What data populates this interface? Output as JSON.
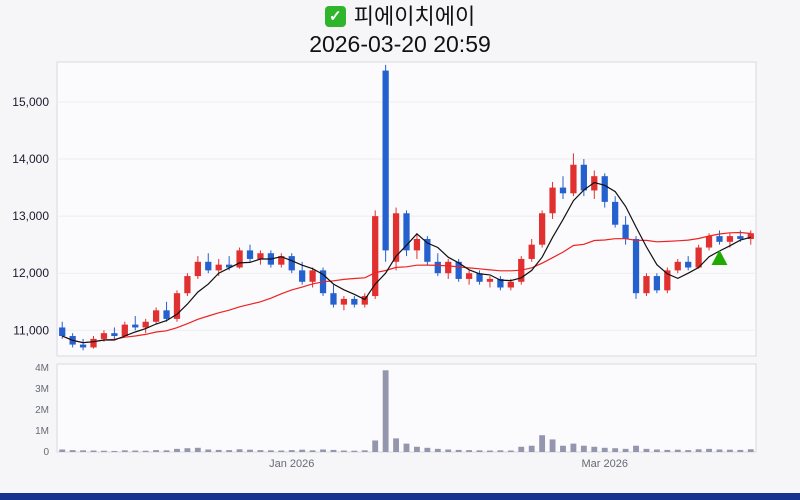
{
  "header": {
    "title": "피에이치에이",
    "datetime": "2026-03-20 20:59",
    "check_glyph": "✓"
  },
  "colors": {
    "up": "#e03030",
    "down": "#2560cf",
    "ma_fast": "#111111",
    "ma_slow": "#ee2222",
    "volume_bar": "#9396ad",
    "grid": "#ededf0",
    "panel_bg": "#fbfbfd",
    "panel_border": "#d9d9df",
    "axis_text": "#1a1a2e",
    "axis_text_muted": "#666a75",
    "marker": "#1faa00",
    "check_bg": "#2eb52c",
    "bottom_bar": "#16338f"
  },
  "chart_data": {
    "type": "candlestick",
    "title": "피에이치에이",
    "subtitle": "2026-03-20 20:59",
    "legend_position": "none",
    "grid": true,
    "y_axis": {
      "labels": [
        "15,000",
        "14,000",
        "13,000",
        "12,000",
        "11,000"
      ],
      "min": 10550,
      "max": 15700
    },
    "volume_axis": {
      "labels": [
        "4M",
        "3M",
        "2M",
        "1M",
        "0"
      ],
      "max": 4200000
    },
    "x_ticks": [
      {
        "index": 22,
        "label": "Jan 2026"
      },
      {
        "index": 52,
        "label": "Mar 2026"
      }
    ],
    "marker": {
      "index": 63,
      "price": 12250,
      "shape": "triangle-up",
      "color": "#1faa00"
    },
    "series_note": "candles are [open, high, low, close, volume]; red=up, blue=down; black line = MA5, red line = MA20",
    "candles": [
      [
        11050,
        11150,
        10850,
        10900,
        120000
      ],
      [
        10900,
        10950,
        10700,
        10750,
        90000
      ],
      [
        10750,
        10850,
        10650,
        10700,
        80000
      ],
      [
        10700,
        10900,
        10680,
        10850,
        70000
      ],
      [
        10850,
        11000,
        10800,
        10950,
        60000
      ],
      [
        10950,
        11050,
        10850,
        10900,
        50000
      ],
      [
        10900,
        11150,
        10880,
        11100,
        80000
      ],
      [
        11100,
        11250,
        11000,
        11050,
        70000
      ],
      [
        11050,
        11200,
        10950,
        11150,
        60000
      ],
      [
        11150,
        11400,
        11100,
        11350,
        90000
      ],
      [
        11350,
        11500,
        11150,
        11200,
        80000
      ],
      [
        11200,
        11700,
        11150,
        11650,
        150000
      ],
      [
        11650,
        12000,
        11600,
        11950,
        180000
      ],
      [
        11950,
        12300,
        11900,
        12200,
        200000
      ],
      [
        12200,
        12350,
        12000,
        12050,
        120000
      ],
      [
        12050,
        12250,
        11950,
        12150,
        100000
      ],
      [
        12150,
        12300,
        12050,
        12100,
        90000
      ],
      [
        12100,
        12450,
        12080,
        12400,
        130000
      ],
      [
        12400,
        12500,
        12200,
        12250,
        110000
      ],
      [
        12250,
        12400,
        12150,
        12350,
        90000
      ],
      [
        12350,
        12400,
        12100,
        12150,
        80000
      ],
      [
        12150,
        12350,
        12100,
        12300,
        70000
      ],
      [
        12300,
        12350,
        12000,
        12050,
        90000
      ],
      [
        12050,
        12200,
        11800,
        11850,
        110000
      ],
      [
        11850,
        12100,
        11750,
        12050,
        80000
      ],
      [
        12050,
        12100,
        11600,
        11650,
        120000
      ],
      [
        11650,
        11800,
        11400,
        11450,
        100000
      ],
      [
        11450,
        11600,
        11350,
        11550,
        70000
      ],
      [
        11550,
        11600,
        11400,
        11450,
        60000
      ],
      [
        11450,
        11650,
        11400,
        11600,
        80000
      ],
      [
        11600,
        13100,
        11550,
        13000,
        550000
      ],
      [
        15550,
        15650,
        12200,
        12400,
        3900000
      ],
      [
        12200,
        13150,
        12050,
        13050,
        650000
      ],
      [
        13050,
        13100,
        12300,
        12400,
        400000
      ],
      [
        12400,
        12700,
        12250,
        12600,
        250000
      ],
      [
        12600,
        12650,
        12150,
        12200,
        200000
      ],
      [
        12200,
        12350,
        11950,
        12000,
        150000
      ],
      [
        12000,
        12250,
        11900,
        12200,
        120000
      ],
      [
        12200,
        12250,
        11850,
        11900,
        100000
      ],
      [
        11900,
        12050,
        11800,
        12000,
        90000
      ],
      [
        12000,
        12050,
        11800,
        11850,
        80000
      ],
      [
        11850,
        11950,
        11750,
        11900,
        70000
      ],
      [
        11900,
        11950,
        11700,
        11750,
        80000
      ],
      [
        11750,
        11900,
        11700,
        11850,
        70000
      ],
      [
        11850,
        12300,
        11800,
        12250,
        250000
      ],
      [
        12250,
        12600,
        12200,
        12500,
        300000
      ],
      [
        12500,
        13100,
        12450,
        13050,
        800000
      ],
      [
        13050,
        13600,
        12950,
        13500,
        600000
      ],
      [
        13500,
        13700,
        13300,
        13400,
        300000
      ],
      [
        13400,
        14100,
        13350,
        13900,
        400000
      ],
      [
        13900,
        14000,
        13350,
        13450,
        300000
      ],
      [
        13450,
        13800,
        13300,
        13700,
        250000
      ],
      [
        13700,
        13750,
        13150,
        13250,
        200000
      ],
      [
        13250,
        13350,
        12800,
        12850,
        180000
      ],
      [
        12850,
        13000,
        12500,
        12600,
        150000
      ],
      [
        12600,
        12650,
        11550,
        11650,
        300000
      ],
      [
        11650,
        12000,
        11600,
        11950,
        150000
      ],
      [
        11950,
        12000,
        11650,
        11700,
        120000
      ],
      [
        11700,
        12100,
        11650,
        12050,
        100000
      ],
      [
        12050,
        12250,
        12000,
        12200,
        110000
      ],
      [
        12200,
        12300,
        12050,
        12100,
        90000
      ],
      [
        12100,
        12500,
        12080,
        12450,
        130000
      ],
      [
        12450,
        12700,
        12400,
        12650,
        150000
      ],
      [
        12650,
        12750,
        12500,
        12550,
        120000
      ],
      [
        12550,
        12700,
        12450,
        12650,
        110000
      ],
      [
        12650,
        12750,
        12550,
        12600,
        100000
      ],
      [
        12600,
        12750,
        12500,
        12700,
        130000
      ]
    ]
  }
}
